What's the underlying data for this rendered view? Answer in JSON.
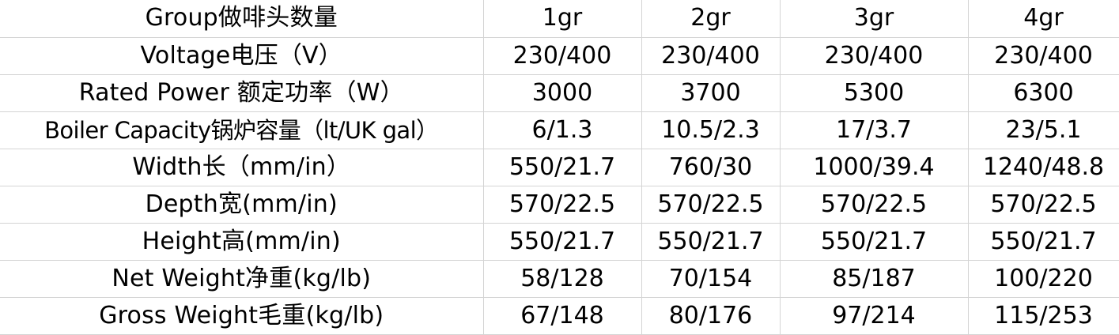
{
  "spec_table": {
    "rows": [
      {
        "label": "Group做啡头数量",
        "values": [
          "1gr",
          "2gr",
          "3gr",
          "4gr"
        ]
      },
      {
        "label": "Voltage电压（V）",
        "values": [
          "230/400",
          "230/400",
          "230/400",
          "230/400"
        ]
      },
      {
        "label": "Rated Power 额定功率（W）",
        "values": [
          "3000",
          "3700",
          "5300",
          "6300"
        ]
      },
      {
        "label": "Boiler Capacity锅炉容量（lt/UK gal）",
        "values": [
          "6/1.3",
          "10.5/2.3",
          "17/3.7",
          "23/5.1"
        ]
      },
      {
        "label": "Width长（mm/in）",
        "values": [
          "550/21.7",
          "760/30",
          "1000/39.4",
          "1240/48.8"
        ]
      },
      {
        "label": "Depth宽(mm/in)",
        "values": [
          "570/22.5",
          "570/22.5",
          "570/22.5",
          "570/22.5"
        ]
      },
      {
        "label": "Height高(mm/in)",
        "values": [
          "550/21.7",
          "550/21.7",
          "550/21.7",
          "550/21.7"
        ]
      },
      {
        "label": "Net Weight净重(kg/lb)",
        "values": [
          "58/128",
          "70/154",
          "85/187",
          "100/220"
        ]
      },
      {
        "label": "Gross Weight毛重(kg/lb)",
        "values": [
          "67/148",
          "80/176",
          "97/214",
          "115/253"
        ]
      }
    ]
  }
}
